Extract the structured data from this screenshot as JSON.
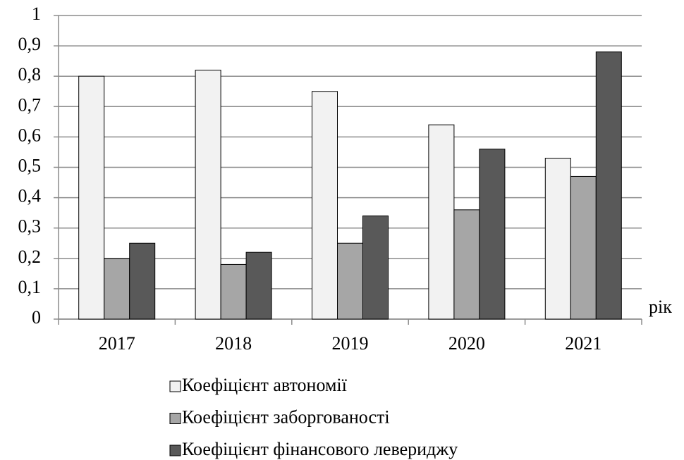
{
  "chart_data": {
    "type": "bar",
    "x_label": "рік",
    "categories": [
      "2017",
      "2018",
      "2019",
      "2020",
      "2021"
    ],
    "series": [
      {
        "name": "Коефіцієнт автономії",
        "color": "#f2f2f2",
        "values": [
          0.8,
          0.82,
          0.75,
          0.64,
          0.53
        ]
      },
      {
        "name": "Коефіцієнт заборгованості",
        "color": "#a6a6a6",
        "values": [
          0.2,
          0.18,
          0.25,
          0.36,
          0.47
        ]
      },
      {
        "name": "Коефіцієнт фінансового левериджу",
        "color": "#595959",
        "values": [
          0.25,
          0.22,
          0.34,
          0.56,
          0.88
        ]
      }
    ],
    "ylim": [
      0,
      1
    ],
    "yticks": [
      0,
      {
        "value": 0.1,
        "label": "0,1"
      },
      {
        "value": 0.2,
        "label": "0,2"
      },
      {
        "value": 0.3,
        "label": "0,3"
      },
      {
        "value": 0.4,
        "label": "0,4"
      },
      {
        "value": 0.5,
        "label": "0,5"
      },
      {
        "value": 0.6,
        "label": "0,6"
      },
      {
        "value": 0.7,
        "label": "0,7"
      },
      {
        "value": 0.8,
        "label": "0,8"
      },
      {
        "value": 0.9,
        "label": "0,9"
      },
      1
    ],
    "grid": true,
    "legend": "bottom"
  }
}
